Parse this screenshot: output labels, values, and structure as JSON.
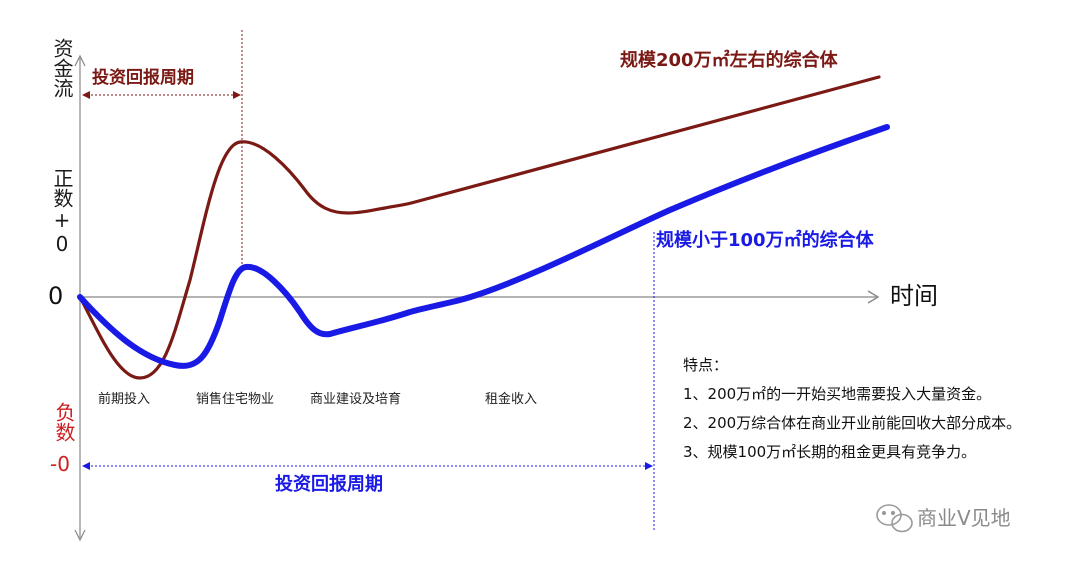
{
  "y_axis": {
    "label": "资金流",
    "positive": "正数+0",
    "zero": "0",
    "negative_a": "负数",
    "negative_b": "-0"
  },
  "x_axis": {
    "label": "时间"
  },
  "series": {
    "large": {
      "name": "规模200万㎡左右的综合体",
      "color": "#7b1a14"
    },
    "small": {
      "name": "规模小于100万㎡的综合体",
      "color": "#1a1ae6"
    }
  },
  "payback": {
    "large_label": "投资回报周期",
    "small_label": "投资回报周期"
  },
  "stages": [
    "前期投入",
    "销售住宅物业",
    "商业建设及培育",
    "租金收入"
  ],
  "notes": {
    "title": "特点：",
    "items": [
      "1、200万㎡的一开始买地需要投入大量资金。",
      "2、200万综合体在商业开业前能回收大部分成本。",
      "3、规模100万㎡长期的租金更具有竞争力。"
    ]
  },
  "watermark": {
    "text": "商业V见地"
  },
  "colors": {
    "axis": "#888888",
    "red": "#cc1f1f",
    "dark_red": "#7b1a14",
    "blue": "#1a1ae6"
  }
}
